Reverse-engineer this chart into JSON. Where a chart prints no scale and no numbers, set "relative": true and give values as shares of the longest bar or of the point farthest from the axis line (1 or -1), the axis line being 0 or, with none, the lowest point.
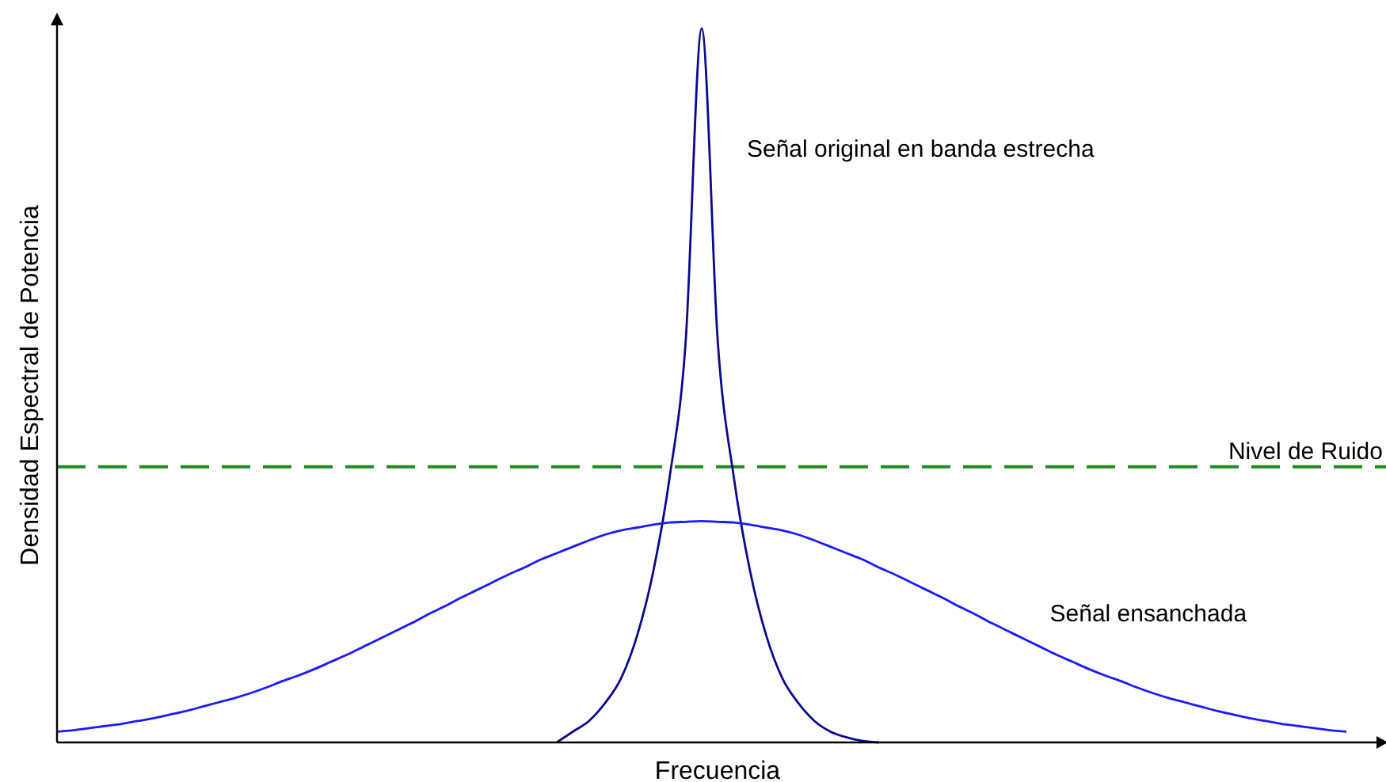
{
  "chart_data": {
    "type": "line",
    "relative": true,
    "xlabel": "Frecuencia",
    "ylabel": "Densidad Espectral de Potencia",
    "categories": [
      null,
      null,
      null,
      null,
      null,
      null,
      null,
      null,
      null,
      null,
      null,
      null,
      null,
      null,
      null,
      null,
      null,
      null,
      null,
      null,
      null,
      null,
      null,
      null,
      null,
      null,
      null,
      null,
      null,
      null,
      null,
      null,
      null,
      null,
      null,
      null,
      null,
      null,
      null,
      null,
      null,
      null,
      null,
      null,
      null,
      null,
      null,
      null,
      null,
      null,
      null,
      null,
      null,
      null,
      null,
      null,
      null,
      null,
      null,
      null,
      null,
      null,
      null,
      null,
      null,
      null,
      null,
      null,
      null,
      null,
      null,
      null,
      null,
      null,
      null,
      null,
      null,
      null,
      null,
      null,
      null
    ],
    "series": [
      {
        "name": "Señal original en banda estrecha",
        "color": "#0a0a8c",
        "values": [
          null,
          null,
          null,
          null,
          null,
          null,
          null,
          null,
          null,
          null,
          null,
          null,
          null,
          null,
          null,
          null,
          null,
          null,
          null,
          null,
          null,
          null,
          null,
          null,
          null,
          null,
          null,
          null,
          null,
          null,
          null,
          0,
          0.015,
          0.03,
          0.055,
          0.09,
          0.15,
          0.24,
          0.37,
          0.56,
          1,
          0.56,
          0.37,
          0.24,
          0.15,
          0.09,
          0.055,
          0.03,
          0.015,
          0.007,
          0.002,
          0,
          null,
          null,
          null,
          null,
          null,
          null,
          null,
          null,
          null,
          null,
          null,
          null,
          null,
          null,
          null,
          null,
          null,
          null,
          null,
          null,
          null,
          null,
          null,
          null,
          null,
          null,
          null,
          null,
          null
        ]
      },
      {
        "name": "Señal ensanchada",
        "color": "#1a1aff",
        "values": [
          0.015,
          0.017,
          0.02,
          0.023,
          0.026,
          0.03,
          0.034,
          0.039,
          0.044,
          0.05,
          0.056,
          0.062,
          0.069,
          0.077,
          0.086,
          0.094,
          0.103,
          0.113,
          0.123,
          0.134,
          0.145,
          0.156,
          0.167,
          0.179,
          0.19,
          0.202,
          0.213,
          0.224,
          0.235,
          0.245,
          0.256,
          0.265,
          0.274,
          0.283,
          0.291,
          0.297,
          0.301,
          0.305,
          0.308,
          0.309,
          0.31,
          0.309,
          0.308,
          0.305,
          0.301,
          0.297,
          0.291,
          0.283,
          0.274,
          0.265,
          0.256,
          0.245,
          0.235,
          0.224,
          0.213,
          0.202,
          0.19,
          0.179,
          0.167,
          0.156,
          0.145,
          0.134,
          0.123,
          0.113,
          0.103,
          0.094,
          0.086,
          0.077,
          0.069,
          0.062,
          0.056,
          0.05,
          0.044,
          0.039,
          0.034,
          0.03,
          0.026,
          0.023,
          0.02,
          0.017,
          0.015
        ]
      }
    ],
    "ref_lines": [
      {
        "axis": "y",
        "value": 0.386,
        "label": "Nivel de Ruido",
        "color": "#1e8c1e",
        "line_style": "dashed"
      }
    ],
    "grid": false
  }
}
